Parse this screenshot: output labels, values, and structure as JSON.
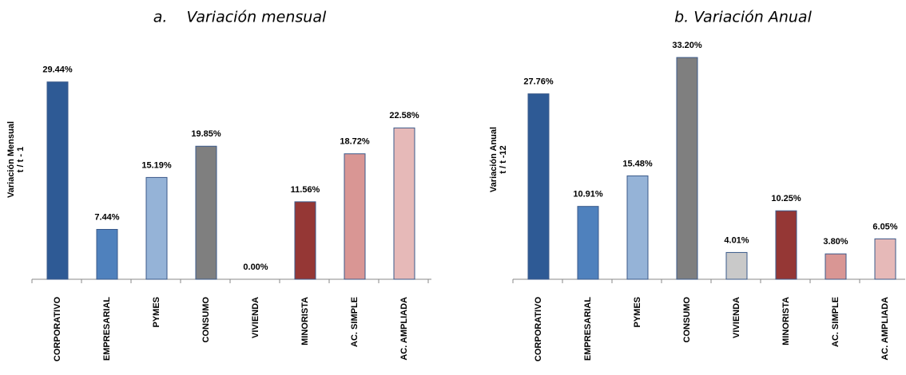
{
  "chart_data": [
    {
      "type": "bar",
      "title": "a.    Variación mensual",
      "ylabel": [
        "Variación Mensual",
        "t / t - 1"
      ],
      "categories": [
        "CORPORATIVO",
        "EMPRESARIAL",
        "PYMES",
        "CONSUMO",
        "VIVIENDA",
        "MINORISTA",
        "AC. SIMPLE",
        "AC. AMPLIADA"
      ],
      "values": [
        29.44,
        7.44,
        15.19,
        19.85,
        0.0,
        11.56,
        18.72,
        22.58
      ],
      "value_labels": [
        "29.44%",
        "7.44%",
        "15.19%",
        "19.85%",
        "0.00%",
        "11.56%",
        "18.72%",
        "22.58%"
      ],
      "colors": [
        "#2e5a95",
        "#4f81bd",
        "#95b3d7",
        "#7f7f7f",
        "#c9c9c9",
        "#953735",
        "#d99694",
        "#e6b9b8"
      ],
      "ylim": [
        0,
        35
      ]
    },
    {
      "type": "bar",
      "title": "b. Variación Anual",
      "ylabel": [
        "Variación Anual",
        "t / t -12"
      ],
      "categories": [
        "CORPORATIVO",
        "EMPRESARIAL",
        "PYMES",
        "CONSUMO",
        "VIVIENDA",
        "MINORISTA",
        "AC. SIMPLE",
        "AC. AMPLIADA"
      ],
      "values": [
        27.76,
        10.91,
        15.48,
        33.2,
        4.01,
        10.25,
        3.8,
        6.05
      ],
      "value_labels": [
        "27.76%",
        "10.91%",
        "15.48%",
        "33.20%",
        "4.01%",
        "10.25%",
        "3.80%",
        "6.05%"
      ],
      "colors": [
        "#2e5a95",
        "#4f81bd",
        "#95b3d7",
        "#7f7f7f",
        "#c9c9c9",
        "#953735",
        "#d99694",
        "#e6b9b8"
      ],
      "ylim": [
        0,
        35
      ]
    }
  ]
}
